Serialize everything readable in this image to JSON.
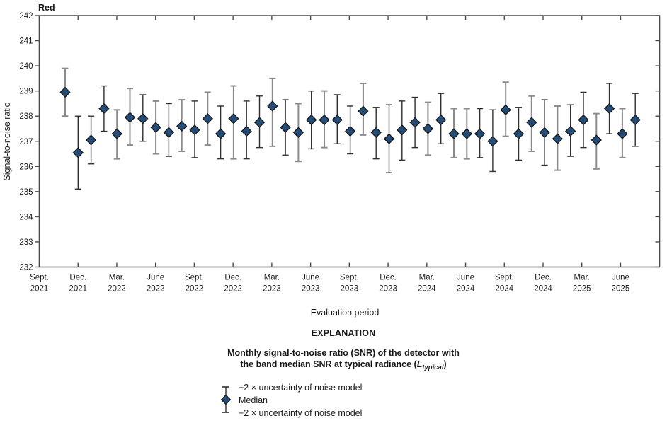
{
  "chart_data": {
    "type": "scatter",
    "title": "Red",
    "xlabel": "Evaluation period",
    "ylabel": "Signal-to-noise ratio",
    "ylim": [
      232,
      242
    ],
    "yticks": [
      232,
      233,
      234,
      235,
      236,
      237,
      238,
      239,
      240,
      241,
      242
    ],
    "xtick_labels": [
      [
        "Sept.",
        "2021"
      ],
      [
        "Dec.",
        "2021"
      ],
      [
        "Mar.",
        "2022"
      ],
      [
        "June",
        "2022"
      ],
      [
        "Sept.",
        "2022"
      ],
      [
        "Dec.",
        "2022"
      ],
      [
        "Mar.",
        "2023"
      ],
      [
        "June",
        "2023"
      ],
      [
        "Sept.",
        "2023"
      ],
      [
        "Dec.",
        "2023"
      ],
      [
        "Mar.",
        "2024"
      ],
      [
        "June",
        "2024"
      ],
      [
        "Sept.",
        "2024"
      ],
      [
        "Dec.",
        "2024"
      ],
      [
        "Mar.",
        "2025"
      ],
      [
        "June",
        "2025"
      ]
    ],
    "grid": false,
    "legend_position": "below",
    "x": [
      "Nov. 2021",
      "Dec. 2021",
      "Jan. 2022",
      "Feb. 2022",
      "Mar. 2022",
      "Apr. 2022",
      "May 2022",
      "June 2022",
      "July 2022",
      "Aug. 2022",
      "Sept. 2022",
      "Oct. 2022",
      "Nov. 2022",
      "Dec. 2022",
      "Jan. 2023",
      "Feb. 2023",
      "Mar. 2023",
      "Apr. 2023",
      "May 2023",
      "June 2023",
      "July 2023",
      "Aug. 2023",
      "Sept. 2023",
      "Oct. 2023",
      "Nov. 2023",
      "Dec. 2023",
      "Jan. 2024",
      "Feb. 2024",
      "Mar. 2024",
      "Apr. 2024",
      "May 2024",
      "June 2024",
      "July 2024",
      "Aug. 2024",
      "Sept. 2024",
      "Oct. 2024",
      "Nov. 2024",
      "Dec. 2024",
      "Jan. 2025",
      "Feb. 2025",
      "Mar. 2025",
      "Apr. 2025",
      "May 2025",
      "June 2025",
      "July 2025"
    ],
    "series": [
      {
        "name": "Median",
        "values": [
          238.95,
          236.55,
          237.05,
          238.3,
          237.3,
          237.95,
          237.9,
          237.55,
          237.35,
          237.6,
          237.45,
          237.9,
          237.3,
          237.9,
          237.4,
          237.75,
          238.4,
          237.55,
          237.35,
          237.85,
          237.85,
          237.85,
          237.4,
          238.2,
          237.35,
          237.1,
          237.45,
          237.75,
          237.5,
          237.85,
          237.3,
          237.3,
          237.3,
          237.0,
          238.25,
          237.3,
          237.75,
          237.35,
          237.1,
          237.4,
          237.85,
          237.05,
          238.3,
          237.3,
          237.85
        ]
      },
      {
        "name": "+2 × uncertainty of noise model",
        "values": [
          239.9,
          238.0,
          238.0,
          239.2,
          238.25,
          239.1,
          238.85,
          238.6,
          238.5,
          238.65,
          238.6,
          238.95,
          238.4,
          239.2,
          238.6,
          238.8,
          239.5,
          238.65,
          238.5,
          239.0,
          239.0,
          238.85,
          238.4,
          239.3,
          238.35,
          238.45,
          238.6,
          238.75,
          238.55,
          238.9,
          238.3,
          238.3,
          238.3,
          238.25,
          239.35,
          238.35,
          238.8,
          238.65,
          238.4,
          238.45,
          238.95,
          238.1,
          239.3,
          238.3,
          238.9
        ]
      },
      {
        "name": "−2 × uncertainty of noise model",
        "values": [
          238.0,
          235.1,
          236.1,
          237.4,
          236.3,
          236.85,
          237.0,
          236.5,
          236.4,
          236.6,
          236.35,
          236.85,
          236.3,
          236.3,
          236.3,
          236.75,
          236.8,
          236.45,
          236.2,
          236.7,
          236.75,
          236.9,
          236.5,
          237.25,
          236.3,
          235.75,
          236.25,
          236.75,
          236.45,
          236.9,
          236.35,
          236.3,
          236.35,
          235.8,
          237.2,
          236.25,
          236.6,
          236.05,
          235.85,
          236.4,
          236.75,
          235.9,
          237.3,
          236.35,
          236.8
        ]
      }
    ],
    "marker_color": "#244C77",
    "marker_stroke": "#141414",
    "errorbar_dark": "#2f2f2f",
    "errorbar_gray": "#8b8b8b",
    "axis_color": "#4a4a4a",
    "bar_shades": [
      "g",
      "b",
      "b",
      "b",
      "g",
      "g",
      "b",
      "g",
      "b",
      "g",
      "b",
      "g",
      "b",
      "g",
      "b",
      "b",
      "g",
      "b",
      "g",
      "b",
      "g",
      "b",
      "b",
      "g",
      "b",
      "b",
      "b",
      "b",
      "g",
      "b",
      "g",
      "g",
      "b",
      "b",
      "g",
      "b",
      "g",
      "b",
      "g",
      "b",
      "b",
      "g",
      "b",
      "g",
      "b"
    ]
  },
  "legend": {
    "heading": "EXPLANATION",
    "caption_line1": "Monthly signal-to-noise ratio (SNR) of the detector with",
    "caption_line2_prefix": "the band median SNR at typical radiance (",
    "caption_symbol": "L",
    "caption_subscript": "typical",
    "caption_suffix": ")",
    "items": [
      {
        "label": "+2 × uncertainty of noise model"
      },
      {
        "label": "Median"
      },
      {
        "label": "−2 × uncertainty of noise model"
      }
    ]
  }
}
